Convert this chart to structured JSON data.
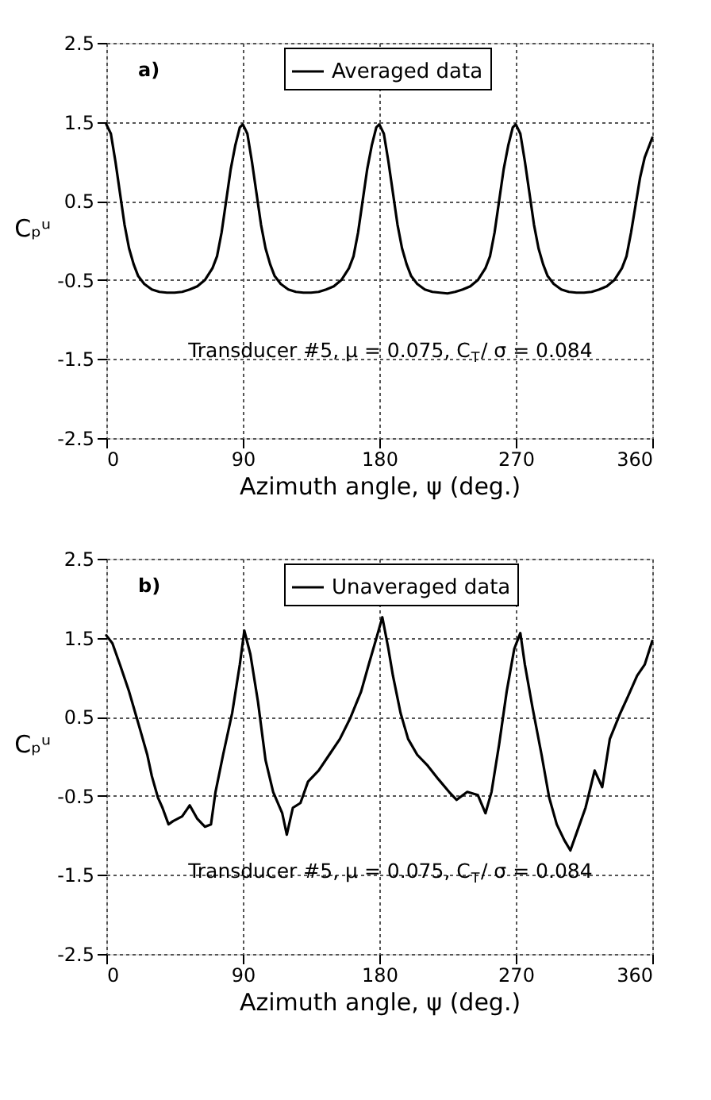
{
  "chart_data": [
    {
      "type": "line",
      "xlabel": "Azimuth angle, ψ (deg.)",
      "ylabel": "Cₚᵘ",
      "annotations": [
        "a)",
        "Transducer #5, μ = 0.075, C$_{T}$/ σ = 0.084"
      ],
      "x": [
        0,
        3,
        6,
        9,
        12,
        15,
        18,
        21,
        25,
        30,
        35,
        40,
        45,
        50,
        55,
        60,
        65,
        70,
        73,
        76,
        79,
        82,
        85,
        88,
        90,
        93,
        96,
        99,
        102,
        105,
        108,
        111,
        115,
        120,
        125,
        130,
        135,
        140,
        145,
        150,
        155,
        160,
        163,
        166,
        169,
        172,
        175,
        178,
        180,
        183,
        186,
        189,
        192,
        195,
        198,
        201,
        205,
        210,
        215,
        220,
        225,
        230,
        235,
        240,
        245,
        250,
        253,
        256,
        259,
        262,
        265,
        268,
        270,
        273,
        276,
        279,
        282,
        285,
        288,
        291,
        295,
        300,
        305,
        310,
        315,
        320,
        325,
        330,
        335,
        340,
        343,
        346,
        349,
        352,
        355,
        358,
        360
      ],
      "series": [
        {
          "name": "Averaged data",
          "color": "#000000",
          "values": [
            1.47,
            1.35,
            1.0,
            0.6,
            0.2,
            -0.1,
            -0.3,
            -0.45,
            -0.55,
            -0.62,
            -0.65,
            -0.66,
            -0.66,
            -0.65,
            -0.62,
            -0.58,
            -0.5,
            -0.35,
            -0.2,
            0.1,
            0.5,
            0.9,
            1.2,
            1.43,
            1.47,
            1.35,
            1.0,
            0.6,
            0.2,
            -0.1,
            -0.3,
            -0.45,
            -0.55,
            -0.62,
            -0.65,
            -0.66,
            -0.66,
            -0.65,
            -0.62,
            -0.58,
            -0.5,
            -0.35,
            -0.2,
            0.1,
            0.5,
            0.9,
            1.2,
            1.43,
            1.47,
            1.35,
            1.0,
            0.6,
            0.2,
            -0.1,
            -0.3,
            -0.45,
            -0.55,
            -0.62,
            -0.65,
            -0.66,
            -0.67,
            -0.65,
            -0.62,
            -0.58,
            -0.5,
            -0.35,
            -0.2,
            0.1,
            0.5,
            0.9,
            1.2,
            1.43,
            1.47,
            1.35,
            1.0,
            0.6,
            0.2,
            -0.1,
            -0.3,
            -0.45,
            -0.55,
            -0.62,
            -0.65,
            -0.66,
            -0.66,
            -0.65,
            -0.62,
            -0.58,
            -0.5,
            -0.35,
            -0.2,
            0.1,
            0.45,
            0.8,
            1.05,
            1.2,
            1.3
          ]
        }
      ],
      "xlim": [
        0,
        360
      ],
      "xticks": [
        0,
        90,
        180,
        270,
        360
      ],
      "ylim": [
        -2.5,
        2.5
      ],
      "yticks": [
        -2.5,
        -1.5,
        -0.5,
        0.5,
        1.5,
        2.5
      ],
      "grid": true,
      "legend": "top"
    },
    {
      "type": "line",
      "xlabel": "Azimuth angle, ψ (deg.)",
      "ylabel": "Cₚᵘ",
      "annotations": [
        "b)",
        "Transducer #5, μ = 0.075, C$_{T}$/ σ = 0.084"
      ],
      "x": [
        0,
        4,
        9,
        15,
        20,
        23,
        27,
        30,
        34,
        37,
        41,
        44,
        50,
        55,
        60,
        65,
        69,
        72,
        77,
        83,
        88,
        91,
        95,
        100,
        105,
        110,
        116,
        119,
        123,
        128,
        133,
        140,
        147,
        154,
        161,
        168,
        173,
        178,
        182,
        186,
        189,
        194,
        199,
        205,
        212,
        219,
        226,
        231,
        238,
        245,
        250,
        254,
        259,
        264,
        269,
        273,
        276,
        281,
        287,
        292,
        297,
        302,
        306,
        311,
        316,
        322,
        327,
        332,
        339,
        344,
        350,
        355,
        360
      ],
      "series": [
        {
          "name": "Unaveraged data",
          "color": "#000000",
          "values": [
            1.53,
            1.43,
            1.16,
            0.82,
            0.49,
            0.29,
            0.02,
            -0.25,
            -0.52,
            -0.65,
            -0.86,
            -0.82,
            -0.76,
            -0.62,
            -0.79,
            -0.89,
            -0.86,
            -0.45,
            0.02,
            0.55,
            1.16,
            1.59,
            1.29,
            0.69,
            -0.05,
            -0.45,
            -0.72,
            -0.99,
            -0.65,
            -0.59,
            -0.32,
            -0.18,
            0.02,
            0.22,
            0.49,
            0.82,
            1.16,
            1.49,
            1.76,
            1.36,
            1.02,
            0.55,
            0.22,
            0.02,
            -0.12,
            -0.29,
            -0.45,
            -0.55,
            -0.45,
            -0.49,
            -0.72,
            -0.45,
            0.15,
            0.82,
            1.36,
            1.56,
            1.16,
            0.62,
            0.02,
            -0.52,
            -0.86,
            -1.06,
            -1.19,
            -0.92,
            -0.65,
            -0.18,
            -0.39,
            0.22,
            0.55,
            0.76,
            1.02,
            1.16,
            1.46
          ]
        }
      ],
      "xlim": [
        0,
        360
      ],
      "xticks": [
        0,
        90,
        180,
        270,
        360
      ],
      "ylim": [
        -2.5,
        2.5
      ],
      "yticks": [
        -2.5,
        -1.5,
        -0.5,
        0.5,
        1.5,
        2.5
      ],
      "grid": true,
      "legend": "top"
    }
  ]
}
